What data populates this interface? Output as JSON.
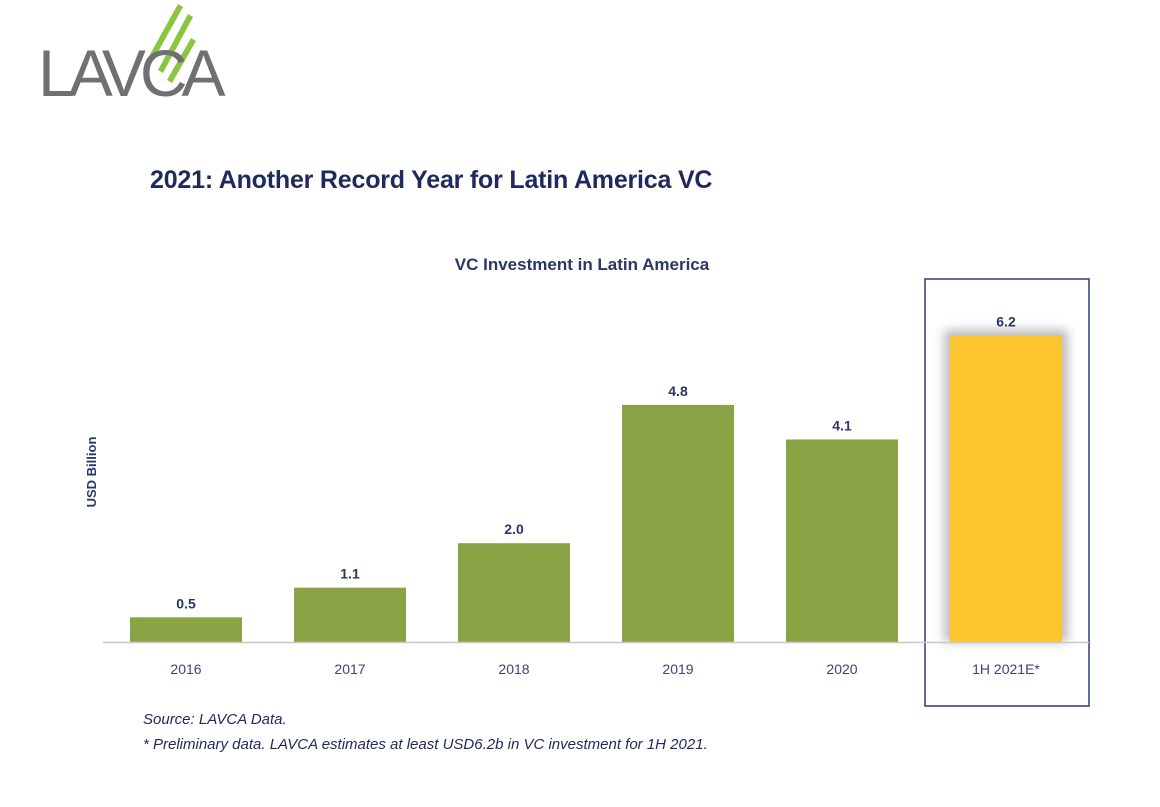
{
  "header": {
    "logo_text": "LAVCA",
    "title": "2021: Another Record Year for Latin America VC"
  },
  "colors": {
    "title": "#1f2a5c",
    "bar_green": "#8aa345",
    "bar_highlight": "#fdc52f",
    "axis_line": "#c8c8c8",
    "highlight_box": "#2e3a78",
    "logo_gray": "#707070",
    "logo_green": "#8cc63f"
  },
  "chart_data": {
    "type": "bar",
    "title": "VC Investment in Latin America",
    "xlabel": "",
    "ylabel": "USD Billion",
    "categories": [
      "2016",
      "2017",
      "2018",
      "2019",
      "2020",
      "1H 2021E*"
    ],
    "values": [
      0.5,
      1.1,
      2.0,
      4.8,
      4.1,
      6.2
    ],
    "data_labels": [
      "0.5",
      "1.1",
      "2.0",
      "4.8",
      "4.1",
      "6.2"
    ],
    "highlighted_category": "1H 2021E*",
    "ylim": [
      0,
      6.5
    ],
    "grid": false,
    "legend": "none"
  },
  "footnotes": {
    "source": "Source: LAVCA Data.",
    "note": "* Preliminary data. LAVCA estimates at least USD6.2b in VC investment for 1H 2021."
  }
}
